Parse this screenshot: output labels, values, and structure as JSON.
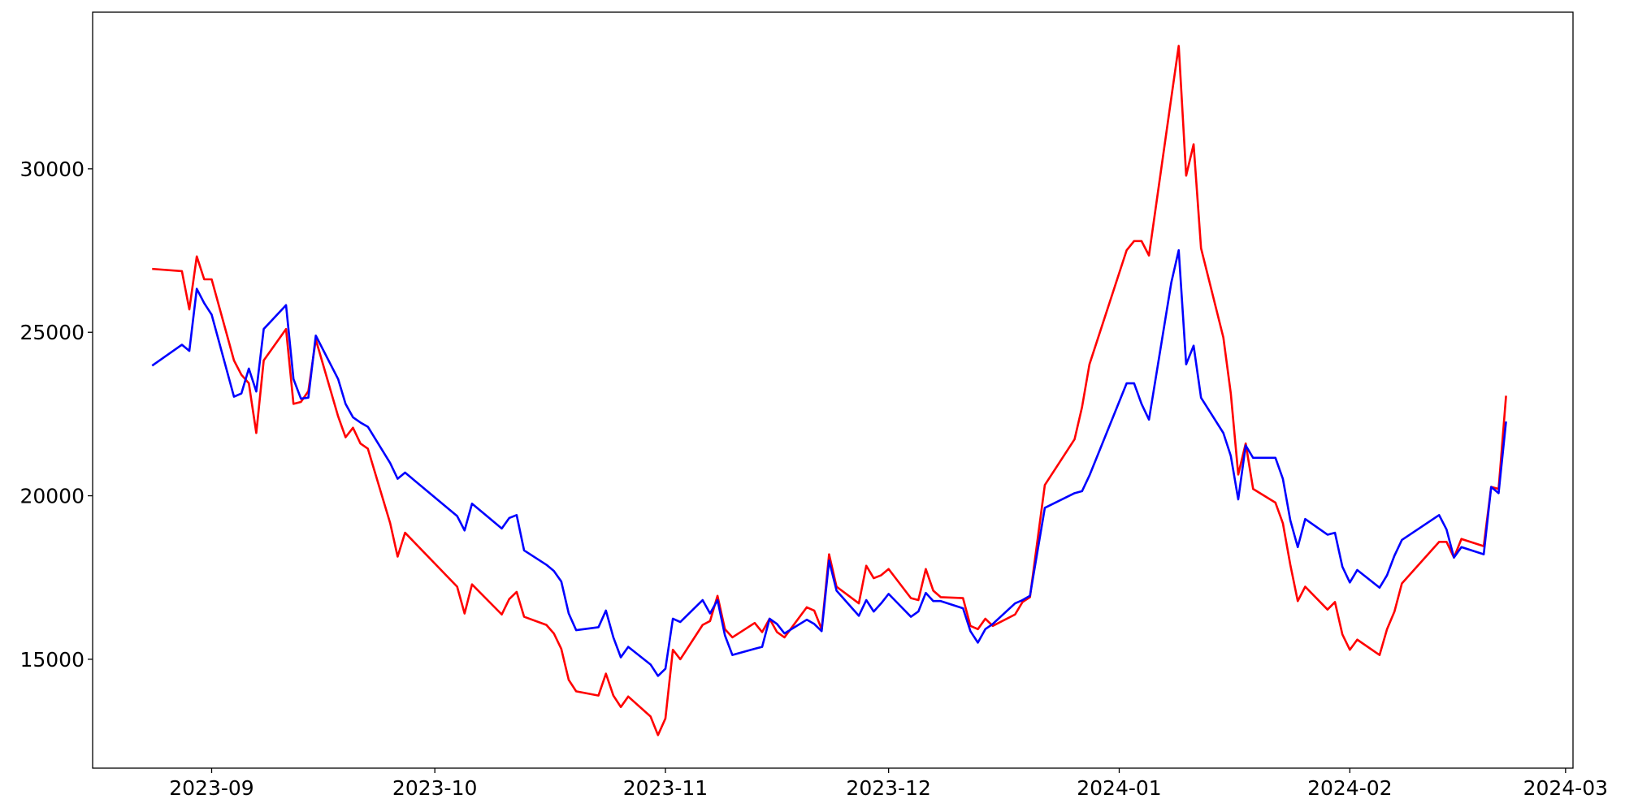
{
  "chart_data": {
    "type": "line",
    "x": [
      "2023-08-24",
      "2023-08-28",
      "2023-08-29",
      "2023-08-30",
      "2023-08-31",
      "2023-09-01",
      "2023-09-04",
      "2023-09-05",
      "2023-09-06",
      "2023-09-07",
      "2023-09-08",
      "2023-09-11",
      "2023-09-12",
      "2023-09-13",
      "2023-09-14",
      "2023-09-15",
      "2023-09-18",
      "2023-09-19",
      "2023-09-20",
      "2023-09-21",
      "2023-09-22",
      "2023-09-25",
      "2023-09-26",
      "2023-09-27",
      "2023-10-04",
      "2023-10-05",
      "2023-10-06",
      "2023-10-10",
      "2023-10-11",
      "2023-10-12",
      "2023-10-13",
      "2023-10-16",
      "2023-10-17",
      "2023-10-18",
      "2023-10-19",
      "2023-10-20",
      "2023-10-23",
      "2023-10-24",
      "2023-10-25",
      "2023-10-26",
      "2023-10-27",
      "2023-10-30",
      "2023-10-31",
      "2023-11-01",
      "2023-11-02",
      "2023-11-03",
      "2023-11-06",
      "2023-11-07",
      "2023-11-08",
      "2023-11-09",
      "2023-11-10",
      "2023-11-13",
      "2023-11-14",
      "2023-11-15",
      "2023-11-16",
      "2023-11-17",
      "2023-11-20",
      "2023-11-21",
      "2023-11-22",
      "2023-11-23",
      "2023-11-24",
      "2023-11-27",
      "2023-11-28",
      "2023-11-29",
      "2023-11-30",
      "2023-12-01",
      "2023-12-04",
      "2023-12-05",
      "2023-12-06",
      "2023-12-07",
      "2023-12-08",
      "2023-12-11",
      "2023-12-12",
      "2023-12-13",
      "2023-12-14",
      "2023-12-15",
      "2023-12-18",
      "2023-12-19",
      "2023-12-20",
      "2023-12-22",
      "2023-12-26",
      "2023-12-27",
      "2023-12-28",
      "2024-01-02",
      "2024-01-03",
      "2024-01-04",
      "2024-01-05",
      "2024-01-08",
      "2024-01-09",
      "2024-01-10",
      "2024-01-11",
      "2024-01-12",
      "2024-01-15",
      "2024-01-16",
      "2024-01-17",
      "2024-01-18",
      "2024-01-19",
      "2024-01-22",
      "2024-01-23",
      "2024-01-24",
      "2024-01-25",
      "2024-01-26",
      "2024-01-29",
      "2024-01-30",
      "2024-01-31",
      "2024-02-01",
      "2024-02-02",
      "2024-02-05",
      "2024-02-06",
      "2024-02-07",
      "2024-02-08",
      "2024-02-13",
      "2024-02-14",
      "2024-02-15",
      "2024-02-16",
      "2024-02-19",
      "2024-02-20",
      "2024-02-21",
      "2024-02-22"
    ],
    "series": [
      {
        "color": "#ff0000",
        "values": [
          26940,
          26870,
          25700,
          27320,
          26620,
          26620,
          24140,
          23700,
          23440,
          21920,
          24140,
          25100,
          22810,
          22870,
          23200,
          24780,
          22430,
          21790,
          22080,
          21600,
          21440,
          19160,
          18140,
          18870,
          17220,
          16400,
          17290,
          16370,
          16840,
          17060,
          16300,
          16050,
          15790,
          15320,
          14370,
          14020,
          13890,
          14560,
          13890,
          13540,
          13860,
          13250,
          12680,
          13190,
          15290,
          15000,
          16050,
          16170,
          16940,
          15920,
          15670,
          16110,
          15830,
          16240,
          15830,
          15670,
          16590,
          16490,
          15920,
          18210,
          17220,
          16710,
          17860,
          17480,
          17570,
          17760,
          16870,
          16810,
          17760,
          17100,
          16900,
          16870,
          16020,
          15920,
          16240,
          16020,
          16370,
          16750,
          16900,
          20330,
          21730,
          22710,
          24020,
          27510,
          27790,
          27790,
          27350,
          32170,
          33760,
          29790,
          30750,
          27570,
          24840,
          23130,
          20650,
          21600,
          20210,
          19790,
          19160,
          17890,
          16780,
          17220,
          16520,
          16750,
          15760,
          15290,
          15600,
          15130,
          15920,
          16460,
          17320,
          18590,
          18590,
          18110,
          18680,
          18460,
          20270,
          20210,
          23060
        ]
      },
      {
        "color": "#0000ff",
        "values": [
          23980,
          24620,
          24430,
          26330,
          25890,
          25540,
          23030,
          23130,
          23890,
          23190,
          25100,
          25830,
          23570,
          22970,
          23000,
          24900,
          23570,
          22810,
          22400,
          22240,
          22110,
          21000,
          20520,
          20710,
          19380,
          18940,
          19760,
          19000,
          19320,
          19410,
          18330,
          17890,
          17700,
          17380,
          16400,
          15890,
          15980,
          16490,
          15670,
          15060,
          15380,
          14840,
          14490,
          14710,
          16240,
          16140,
          16810,
          16400,
          16810,
          15730,
          15130,
          15320,
          15380,
          16240,
          16080,
          15790,
          16210,
          16080,
          15860,
          18020,
          17100,
          16330,
          16810,
          16460,
          16710,
          17000,
          16300,
          16460,
          17030,
          16780,
          16780,
          16560,
          15860,
          15510,
          15920,
          16080,
          16710,
          16810,
          16940,
          19630,
          20080,
          20140,
          20620,
          23440,
          23440,
          22810,
          22330,
          26520,
          27510,
          24020,
          24590,
          23000,
          21920,
          21220,
          19890,
          21540,
          21160,
          21160,
          20520,
          19250,
          18430,
          19290,
          18810,
          18870,
          17830,
          17350,
          17730,
          17190,
          17570,
          18170,
          18650,
          19410,
          18970,
          18110,
          18430,
          18210,
          20270,
          20080,
          22270
        ]
      }
    ],
    "xlim": [
      "2023-08-16",
      "2024-03-02"
    ],
    "xticks": [
      "2023-09",
      "2023-10",
      "2023-11",
      "2023-12",
      "2024-01",
      "2024-02",
      "2024-03"
    ],
    "ylim": [
      11670,
      34790
    ],
    "yticks": [
      15000,
      20000,
      25000,
      30000
    ],
    "grid": false
  }
}
